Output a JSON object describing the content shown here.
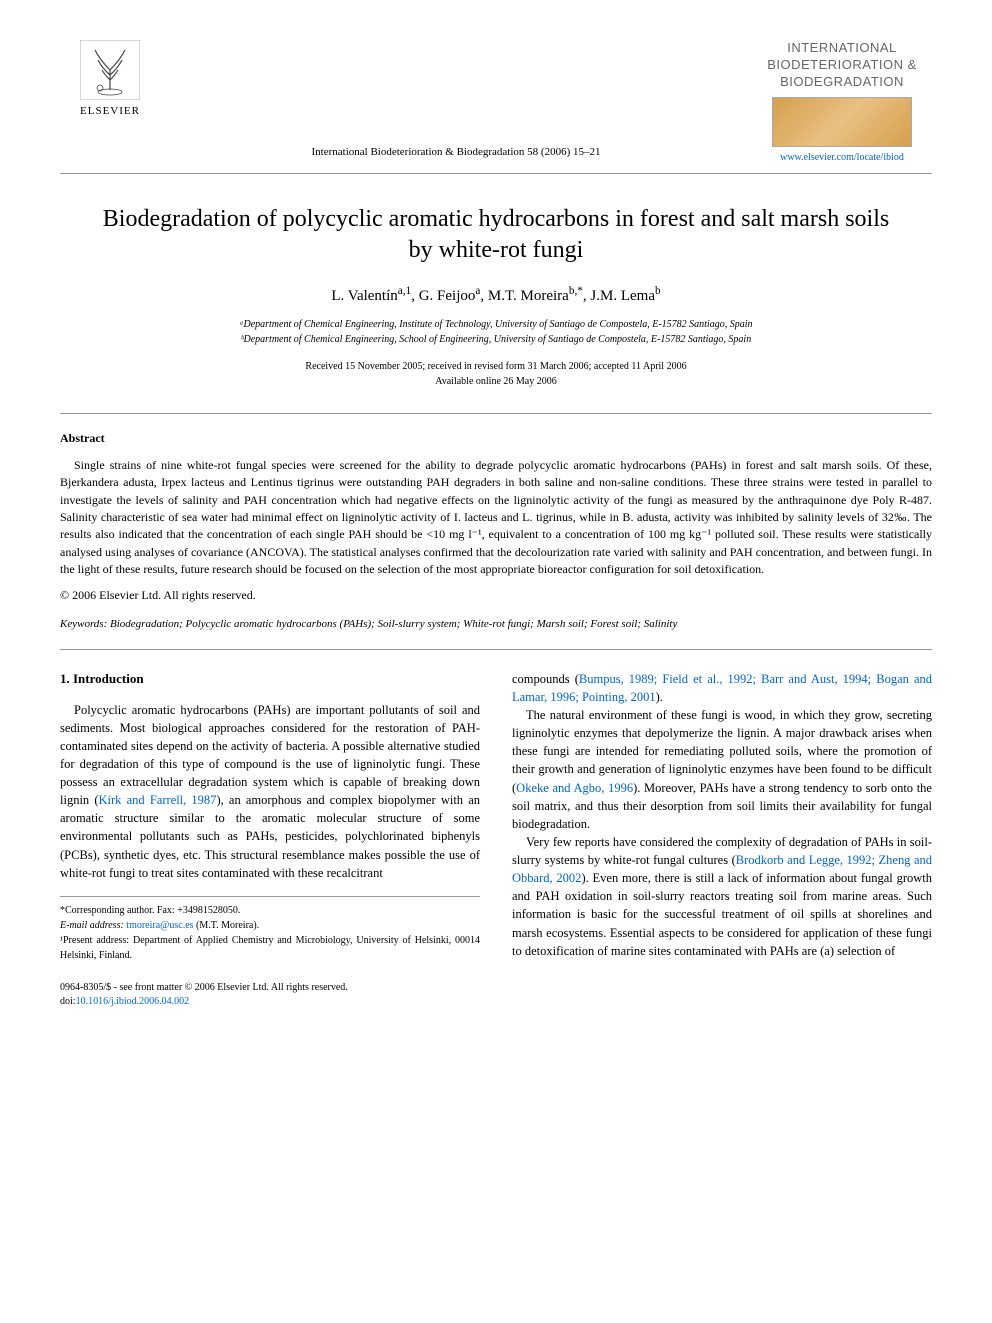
{
  "header": {
    "publisher_name": "ELSEVIER",
    "journal_reference": "International Biodeterioration & Biodegradation 58 (2006) 15–21",
    "journal_brand_title": "INTERNATIONAL BIODETERIORATION & BIODEGRADATION",
    "journal_url": "www.elsevier.com/locate/ibiod"
  },
  "article": {
    "title": "Biodegradation of polycyclic aromatic hydrocarbons in forest and salt marsh soils by white-rot fungi",
    "authors_html": "L. Valentín<sup>a,1</sup>, G. Feijoo<sup>a</sup>, M.T. Moreira<sup>b,*</sup>, J.M. Lema<sup>b</sup>",
    "affiliations": [
      "ᵃDepartment of Chemical Engineering, Institute of Technology, University of Santiago de Compostela, E-15782 Santiago, Spain",
      "ᵇDepartment of Chemical Engineering, School of Engineering, University of Santiago de Compostela, E-15782 Santiago, Spain"
    ],
    "dates_line1": "Received 15 November 2005; received in revised form 31 March 2006; accepted 11 April 2006",
    "dates_line2": "Available online 26 May 2006"
  },
  "abstract": {
    "heading": "Abstract",
    "body": "Single strains of nine white-rot fungal species were screened for the ability to degrade polycyclic aromatic hydrocarbons (PAHs) in forest and salt marsh soils. Of these, Bjerkandera adusta, Irpex lacteus and Lentinus tigrinus were outstanding PAH degraders in both saline and non-saline conditions. These three strains were tested in parallel to investigate the levels of salinity and PAH concentration which had negative effects on the ligninolytic activity of the fungi as measured by the anthraquinone dye Poly R-487. Salinity characteristic of sea water had minimal effect on ligninolytic activity of I. lacteus and L. tigrinus, while in B. adusta, activity was inhibited by salinity levels of 32‰. The results also indicated that the concentration of each single PAH should be <10 mg l⁻¹, equivalent to a concentration of 100 mg kg⁻¹ polluted soil. These results were statistically analysed using analyses of covariance (ANCOVA). The statistical analyses confirmed that the decolourization rate varied with salinity and PAH concentration, and between fungi. In the light of these results, future research should be focused on the selection of the most appropriate bioreactor configuration for soil detoxification.",
    "copyright": "© 2006 Elsevier Ltd. All rights reserved."
  },
  "keywords": {
    "label": "Keywords:",
    "list": "Biodegradation; Polycyclic aromatic hydrocarbons (PAHs); Soil-slurry system; White-rot fungi; Marsh soil; Forest soil; Salinity"
  },
  "body": {
    "section_heading": "1. Introduction",
    "col1_para1_pre": "Polycyclic aromatic hydrocarbons (PAHs) are important pollutants of soil and sediments. Most biological approaches considered for the restoration of PAH-contaminated sites depend on the activity of bacteria. A possible alternative studied for degradation of this type of compound is the use of ligninolytic fungi. These possess an extracellular degradation system which is capable of breaking down lignin (",
    "col1_cite1": "Kirk and Farrell, 1987",
    "col1_para1_post": "), an amorphous and complex biopolymer with an aromatic structure similar to the aromatic molecular structure of some environmental pollutants such as PAHs, pesticides, polychlorinated biphenyls (PCBs), synthetic dyes, etc. This structural resemblance makes possible the use of white-rot fungi to treat sites contaminated with these recalcitrant",
    "col2_run_pre": "compounds (",
    "col2_run_cite": "Bumpus, 1989; Field et al., 1992; Barr and Aust, 1994; Bogan and Lamar, 1996; Pointing, 2001",
    "col2_run_post": ").",
    "col2_para2_pre": "The natural environment of these fungi is wood, in which they grow, secreting ligninolytic enzymes that depolymerize the lignin. A major drawback arises when these fungi are intended for remediating polluted soils, where the promotion of their growth and generation of ligninolytic enzymes have been found to be difficult (",
    "col2_para2_cite": "Okeke and Agbo, 1996",
    "col2_para2_post": "). Moreover, PAHs have a strong tendency to sorb onto the soil matrix, and thus their desorption from soil limits their availability for fungal biodegradation.",
    "col2_para3_pre": "Very few reports have considered the complexity of degradation of PAHs in soil-slurry systems by white-rot fungal cultures (",
    "col2_para3_cite": "Brodkorb and Legge, 1992; Zheng and Obbard, 2002",
    "col2_para3_post": "). Even more, there is still a lack of information about fungal growth and PAH oxidation in soil-slurry reactors treating soil from marine areas. Such information is basic for the successful treatment of oil spills at shorelines and marsh ecosystems. Essential aspects to be considered for application of these fungi to detoxification of marine sites contaminated with PAHs are (a) selection of"
  },
  "footnotes": {
    "corresponding": "*Corresponding author. Fax: +34981528050.",
    "email_label": "E-mail address:",
    "email": "tmoreira@usc.es",
    "email_paren": " (M.T. Moreira).",
    "present": "¹Present address: Department of Applied Chemistry and Microbiology, University of Helsinki, 00014 Helsinki, Finland."
  },
  "bottom": {
    "front_matter": "0964-8305/$ - see front matter © 2006 Elsevier Ltd. All rights reserved.",
    "doi_label": "doi:",
    "doi": "10.1016/j.ibiod.2006.04.002"
  },
  "colors": {
    "text": "#000000",
    "link": "#0066cc",
    "rule": "#999999",
    "brand_text": "#666666",
    "background": "#ffffff"
  },
  "typography": {
    "title_fontsize": 24,
    "authors_fontsize": 15,
    "body_fontsize": 12.5,
    "abstract_fontsize": 12,
    "small_fontsize": 10
  }
}
